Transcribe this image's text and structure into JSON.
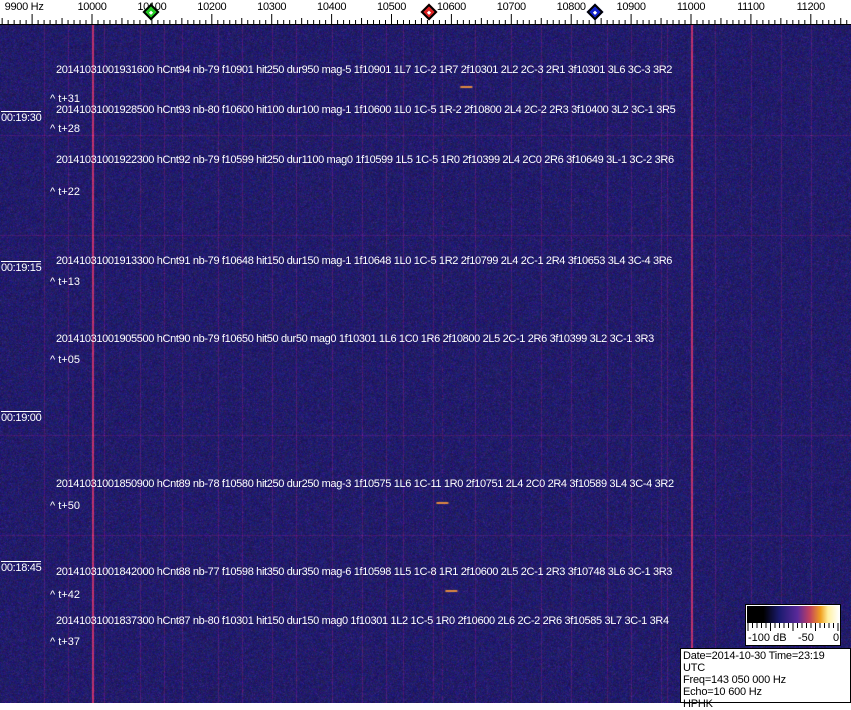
{
  "freq_axis": {
    "labels": [
      {
        "text": "9900 Hz",
        "freq": 9900
      },
      {
        "text": "10000",
        "freq": 10000
      },
      {
        "text": "10100",
        "freq": 10100
      },
      {
        "text": "10200",
        "freq": 10200
      },
      {
        "text": "10300",
        "freq": 10300
      },
      {
        "text": "10400",
        "freq": 10400
      },
      {
        "text": "10500",
        "freq": 10500
      },
      {
        "text": "10600",
        "freq": 10600
      },
      {
        "text": "10700",
        "freq": 10700
      },
      {
        "text": "10800",
        "freq": 10800
      },
      {
        "text": "10900",
        "freq": 10900
      },
      {
        "text": "11000",
        "freq": 11000
      },
      {
        "text": "11100",
        "freq": 11100
      },
      {
        "text": "11200",
        "freq": 11200
      }
    ],
    "markers": [
      {
        "name": "green-marker",
        "freq": 10098,
        "color": "#22cc22"
      },
      {
        "name": "red-marker",
        "freq": 10563,
        "color": "#dd2222"
      },
      {
        "name": "blue-marker",
        "freq": 10840,
        "color": "#1122cc"
      }
    ]
  },
  "time_labels": [
    "00:19:30",
    "00:19:15",
    "00:19:00",
    "00:18:45"
  ],
  "detections": [
    {
      "text": "20141031001931600 hCnt94 nb-79 f10901 hit250 dur950 mag-5 1f10901 1L7 1C-2 1R7 2f10301 2L2 2C-3 2R1 3f10301 3L6 3C-3 3R2",
      "delta": "^ t+31"
    },
    {
      "text": "20141031001928500 hCnt93 nb-80 f10600 hit100 dur100 mag-1 1f10600 1L0 1C-5 1R-2 2f10800 2L4 2C-2 2R3 3f10400 3L2 3C-1 3R5",
      "delta": "^ t+28"
    },
    {
      "text": "20141031001922300 hCnt92 nb-79 f10599 hit250 dur1100 mag0 1f10599 1L5 1C-5 1R0 2f10399 2L4 2C0 2R6 3f10649 3L-1 3C-2 3R6",
      "delta": "^ t+22"
    },
    {
      "text": "20141031001913300 hCnt91 nb-79 f10648 hit150 dur150 mag-1 1f10648 1L0 1C-5 1R2 2f10799 2L4 2C-1 2R4 3f10653 3L4 3C-4 3R6",
      "delta": "^ t+13"
    },
    {
      "text": "20141031001905500 hCnt90 nb-79 f10650 hit50 dur50 mag0 1f10301 1L6 1C0 1R6 2f10800 2L5 2C-1 2R6 3f10399 3L2 3C-1 3R3",
      "delta": "^ t+05"
    },
    {
      "text": "20141031001850900 hCnt89 nb-78 f10580 hit250 dur250 mag-3 1f10575 1L6 1C-11 1R0 2f10751 2L4 2C0 2R4 3f10589 3L4 3C-4 3R2",
      "delta": "^ t+50"
    },
    {
      "text": "20141031001842000 hCnt88 nb-77 f10598 hit350 dur350 mag-6 1f10598 1L5 1C-8 1R1 2f10600 2L5 2C-1 2R3 3f10748 3L6 3C-1 3R3",
      "delta": "^ t+42"
    },
    {
      "text": "20141031001837300 hCnt87 nb-80 f10301 hit150 dur150 mag0 1f10301 1L2 1C-5 1R0 2f10600 2L6 2C-2 2R6 3f10585 3L7 3C-1 3R4",
      "delta": "^ t+37"
    }
  ],
  "colorbar": {
    "min_label": "-100 dB",
    "mid_label": "-50",
    "max_label": "0"
  },
  "info": {
    "date_time": "Date=2014-10-30 Time=23:19 UTC",
    "freq": "Freq=143 050 000 Hz",
    "echo": "Echo=10 600 Hz",
    "station": "HPHK"
  },
  "colors": {
    "background": "#1c1c6a",
    "carrier_line": "#c04a6a"
  }
}
